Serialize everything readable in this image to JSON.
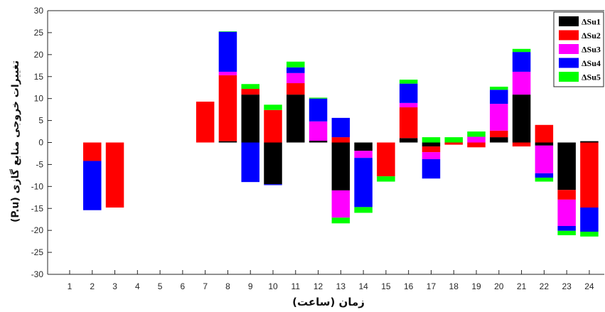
{
  "chart_data": {
    "type": "bar",
    "stacked": true,
    "xlabel": "زمان (ساعت)",
    "ylabel": "تغییرات خروجی منابع گازی (P.u)",
    "categories": [
      "1",
      "2",
      "3",
      "4",
      "5",
      "6",
      "7",
      "8",
      "9",
      "10",
      "11",
      "12",
      "13",
      "14",
      "15",
      "16",
      "17",
      "18",
      "19",
      "20",
      "21",
      "22",
      "23",
      "24"
    ],
    "ylim": [
      -30,
      30
    ],
    "yticks": [
      30,
      25,
      20,
      15,
      10,
      5,
      0,
      -5,
      -10,
      -15,
      -20,
      -25,
      -30
    ],
    "grid": false,
    "legend": "top-right",
    "series": [
      {
        "name": "ΔSu1",
        "color": "#000000",
        "values": [
          0,
          0,
          0,
          0,
          0,
          0,
          0,
          0.3,
          10.9,
          -9.5,
          10.9,
          0.4,
          -10.9,
          -1.9,
          0,
          1.0,
          -0.9,
          0,
          0,
          1.2,
          10.9,
          -0.7,
          -10.8,
          0.3
        ]
      },
      {
        "name": "ΔSu2",
        "color": "#ff0000",
        "values": [
          0,
          -4.2,
          -14.8,
          0,
          0,
          0,
          9.3,
          15.0,
          1.3,
          7.4,
          2.6,
          0,
          1.2,
          0,
          -7.7,
          7.0,
          -1.3,
          -0.5,
          -1.1,
          1.5,
          -0.9,
          4.0,
          -2.2,
          -14.8
        ]
      },
      {
        "name": "ΔSu3",
        "color": "#ff00ff",
        "values": [
          0,
          0,
          0,
          0,
          0,
          0,
          0,
          0.8,
          0,
          0,
          2.3,
          4.4,
          -6.2,
          -1.6,
          0,
          1.0,
          -1.6,
          0,
          1.3,
          6.1,
          5.2,
          -6.3,
          -6.0,
          0
        ]
      },
      {
        "name": "ΔSu4",
        "color": "#0000ff",
        "values": [
          0,
          -11.2,
          0,
          0,
          0,
          0,
          0,
          9.1,
          -9.0,
          -0.2,
          1.3,
          5.2,
          4.4,
          -11.2,
          0,
          4.4,
          -4.4,
          0,
          0,
          3.2,
          4.5,
          -1.0,
          -1.1,
          -5.5
        ]
      },
      {
        "name": "ΔSu5",
        "color": "#00ff00",
        "values": [
          0,
          0,
          0,
          0,
          0,
          0,
          0,
          0.1,
          1.1,
          1.2,
          1.3,
          0.2,
          -1.3,
          -1.3,
          -1.2,
          0.9,
          1.2,
          1.2,
          1.2,
          0.7,
          0.7,
          -0.9,
          -1.0,
          -1.1
        ]
      }
    ]
  }
}
